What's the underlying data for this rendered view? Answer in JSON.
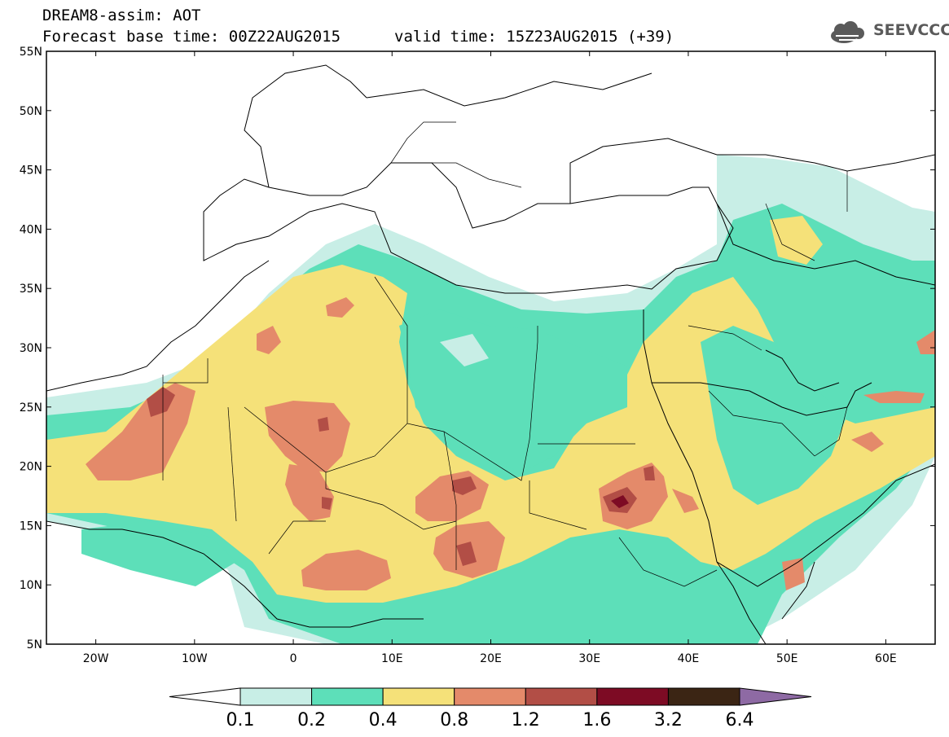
{
  "header": {
    "line1": "DREAM8-assim: AOT",
    "base_time": "Forecast base time: 00Z22AUG2015",
    "valid_time": "valid time: 15Z23AUG2015 (+39)"
  },
  "logo": {
    "text": "SEEVCCC",
    "icon": "cloud-icon"
  },
  "map": {
    "lon_range": [
      -25,
      65
    ],
    "lat_range": [
      5,
      55
    ],
    "lat_ticks": [
      {
        "value": 55,
        "label": "55N"
      },
      {
        "value": 50,
        "label": "50N"
      },
      {
        "value": 45,
        "label": "45N"
      },
      {
        "value": 40,
        "label": "40N"
      },
      {
        "value": 35,
        "label": "35N"
      },
      {
        "value": 30,
        "label": "30N"
      },
      {
        "value": 25,
        "label": "25N"
      },
      {
        "value": 20,
        "label": "20N"
      },
      {
        "value": 15,
        "label": "15N"
      },
      {
        "value": 10,
        "label": "10N"
      },
      {
        "value": 5,
        "label": "5N"
      }
    ],
    "lon_ticks": [
      {
        "value": -20,
        "label": "20W"
      },
      {
        "value": -10,
        "label": "10W"
      },
      {
        "value": 0,
        "label": "0"
      },
      {
        "value": 10,
        "label": "10E"
      },
      {
        "value": 20,
        "label": "20E"
      },
      {
        "value": 30,
        "label": "30E"
      },
      {
        "value": 40,
        "label": "40E"
      },
      {
        "value": 50,
        "label": "50E"
      },
      {
        "value": 60,
        "label": "60E"
      }
    ]
  },
  "colorbar": {
    "labels": [
      "0.1",
      "0.2",
      "0.4",
      "0.8",
      "1.2",
      "1.6",
      "3.2",
      "6.4"
    ],
    "colors": [
      "#ffffff",
      "#c8eee6",
      "#5ddfb9",
      "#f5e179",
      "#e48a6a",
      "#b24e46",
      "#7d0b24",
      "#3b2514",
      "#8e6aa4"
    ]
  }
}
